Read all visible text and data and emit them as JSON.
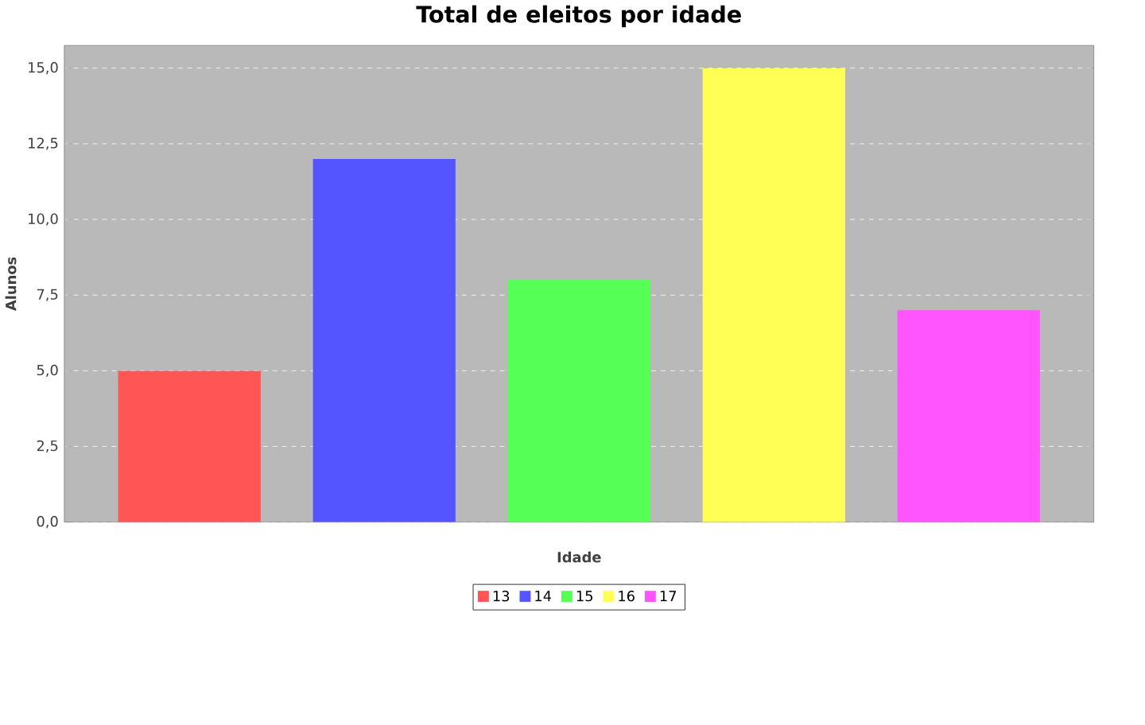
{
  "chart_data": {
    "type": "bar",
    "title": "Total de eleitos por idade",
    "xlabel": "Idade",
    "ylabel": "Alunos",
    "categories": [
      null
    ],
    "series": [
      {
        "name": "13",
        "color": "#ff5555",
        "values": [
          5
        ]
      },
      {
        "name": "14",
        "color": "#5555ff",
        "values": [
          12
        ]
      },
      {
        "name": "15",
        "color": "#55ff55",
        "values": [
          8
        ]
      },
      {
        "name": "16",
        "color": "#ffff55",
        "values": [
          15
        ]
      },
      {
        "name": "17",
        "color": "#ff55ff",
        "values": [
          7
        ]
      }
    ],
    "ylim": [
      0,
      15.75
    ],
    "yticks": [
      {
        "value": 0,
        "label": "0,0"
      },
      {
        "value": 2.5,
        "label": "2,5"
      },
      {
        "value": 5,
        "label": "5,0"
      },
      {
        "value": 7.5,
        "label": "7,5"
      },
      {
        "value": 10,
        "label": "10,0"
      },
      {
        "value": 12.5,
        "label": "12,5"
      },
      {
        "value": 15,
        "label": "15,0"
      }
    ],
    "grid": "y",
    "legend": "bottom"
  }
}
